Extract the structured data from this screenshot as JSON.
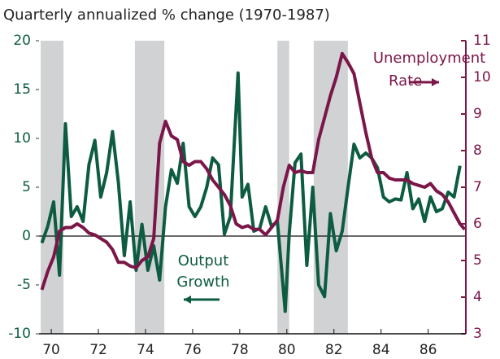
{
  "chart_data": {
    "type": "line",
    "title": "Quarterly annualized % change (1970-1987)",
    "xlim": [
      1969.48,
      1987.6
    ],
    "xticks": [
      {
        "value": 1970,
        "label": "70"
      },
      {
        "value": 1972,
        "label": "72"
      },
      {
        "value": 1974,
        "label": "74"
      },
      {
        "value": 1976,
        "label": "76"
      },
      {
        "value": 1978,
        "label": "78"
      },
      {
        "value": 1980,
        "label": "80"
      },
      {
        "value": 1982,
        "label": "82"
      },
      {
        "value": 1984,
        "label": "84"
      },
      {
        "value": 1986,
        "label": "86"
      }
    ],
    "ylim": [
      -10,
      20
    ],
    "yticks": [
      -10,
      -5,
      0,
      5,
      10,
      15,
      20
    ],
    "y2lim": [
      3,
      11
    ],
    "y2ticks": [
      3,
      4,
      5,
      6,
      7,
      8,
      9,
      10,
      11
    ],
    "recessions": [
      [
        1969.55,
        1970.52
      ],
      [
        1973.55,
        1974.8
      ],
      [
        1979.6,
        1980.1
      ],
      [
        1981.14,
        1982.59
      ]
    ],
    "recession_color": "#d1d2d4",
    "series": [
      {
        "name": "Output Growth",
        "color": "#0d5c42",
        "axis": "y",
        "x": [
          1969.6,
          1969.85,
          1970.1,
          1970.35,
          1970.6,
          1970.85,
          1971.1,
          1971.35,
          1971.6,
          1971.85,
          1972.1,
          1972.35,
          1972.6,
          1972.85,
          1973.1,
          1973.35,
          1973.6,
          1973.85,
          1974.1,
          1974.35,
          1974.6,
          1974.85,
          1975.1,
          1975.35,
          1975.6,
          1975.85,
          1976.1,
          1976.35,
          1976.6,
          1976.85,
          1977.1,
          1977.35,
          1977.6,
          1977.93,
          1978.1,
          1978.35,
          1978.6,
          1978.85,
          1979.1,
          1979.35,
          1979.6,
          1979.93,
          1980.1,
          1980.35,
          1980.6,
          1980.85,
          1981.1,
          1981.35,
          1981.6,
          1981.85,
          1982.1,
          1982.35,
          1982.6,
          1982.85,
          1983.1,
          1983.35,
          1983.6,
          1983.85,
          1984.1,
          1984.35,
          1984.6,
          1984.85,
          1985.1,
          1985.35,
          1985.6,
          1985.85,
          1986.1,
          1986.35,
          1986.6,
          1986.85,
          1987.1,
          1987.35
        ],
        "values": [
          -0.7,
          1,
          3.5,
          -4,
          11.5,
          2,
          3,
          1.5,
          7.3,
          9.8,
          4,
          6.5,
          10.7,
          5.5,
          -2,
          3.5,
          -3.5,
          1.2,
          -3.5,
          -1,
          -4.5,
          3,
          6.8,
          5.4,
          9.5,
          3,
          2,
          3,
          5,
          8,
          7.3,
          0.2,
          2,
          16.7,
          4,
          5.3,
          0.5,
          0.8,
          3,
          1,
          1.5,
          -7.7,
          0.2,
          7.5,
          8.4,
          -3,
          5,
          -5,
          -6.2,
          2.3,
          -1.5,
          0.5,
          5,
          9.4,
          8,
          8.5,
          8,
          7,
          4,
          3.5,
          3.8,
          3.7,
          6.5,
          2.8,
          3.8,
          1.5,
          4,
          2.5,
          2.8,
          4.5,
          4,
          7.2
        ]
      },
      {
        "name": "Unemployment Rate",
        "color": "#7b1648",
        "axis": "y2",
        "x": [
          1969.6,
          1969.85,
          1970.1,
          1970.35,
          1970.6,
          1970.85,
          1971.1,
          1971.35,
          1971.6,
          1971.85,
          1972.1,
          1972.35,
          1972.6,
          1972.85,
          1973.1,
          1973.35,
          1973.6,
          1973.85,
          1974.1,
          1974.35,
          1974.6,
          1974.85,
          1975.1,
          1975.35,
          1975.6,
          1975.85,
          1976.1,
          1976.35,
          1976.6,
          1976.85,
          1977.1,
          1977.35,
          1977.6,
          1977.85,
          1978.1,
          1978.35,
          1978.6,
          1978.85,
          1979.1,
          1979.35,
          1979.6,
          1979.85,
          1980.1,
          1980.35,
          1980.6,
          1980.85,
          1981.1,
          1981.35,
          1981.6,
          1981.85,
          1982.1,
          1982.35,
          1982.6,
          1982.85,
          1983.1,
          1983.35,
          1983.6,
          1983.85,
          1984.1,
          1984.35,
          1984.6,
          1984.85,
          1985.1,
          1985.35,
          1985.6,
          1985.85,
          1986.1,
          1986.35,
          1986.6,
          1986.85,
          1987.1,
          1987.35,
          1987.55
        ],
        "values": [
          4.2,
          4.7,
          5.1,
          5.8,
          5.9,
          5.9,
          6.0,
          5.9,
          5.75,
          5.7,
          5.6,
          5.5,
          5.3,
          4.95,
          4.95,
          4.85,
          4.8,
          5.0,
          5.1,
          5.6,
          8.2,
          8.8,
          8.4,
          8.3,
          7.7,
          7.6,
          7.7,
          7.7,
          7.5,
          7.2,
          7.0,
          6.8,
          6.5,
          6.0,
          5.9,
          5.95,
          5.85,
          5.85,
          5.7,
          5.9,
          6.1,
          7.0,
          7.6,
          7.4,
          7.45,
          7.4,
          7.4,
          8.3,
          8.9,
          9.5,
          10.0,
          10.65,
          10.4,
          10.1,
          9.3,
          8.5,
          7.8,
          7.4,
          7.4,
          7.25,
          7.2,
          7.2,
          7.2,
          7.1,
          7.05,
          7.0,
          7.1,
          6.9,
          6.8,
          6.6,
          6.3,
          6.0,
          5.85
        ]
      }
    ],
    "annotations": [
      {
        "lines": [
          "Output",
          "Growth"
        ],
        "series": 0
      },
      {
        "lines": [
          "Unemployment",
          "Rate"
        ],
        "series": 1
      }
    ]
  }
}
